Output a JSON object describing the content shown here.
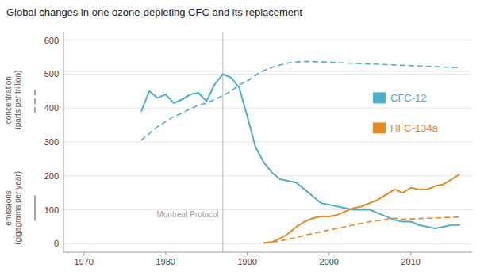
{
  "chart_data": {
    "type": "line",
    "title": "Global changes in one ozone-depleting CFC and its replacement",
    "ylabel": [
      {
        "lines": [
          "concentration",
          "(parts per trillion)"
        ],
        "line_style": "dashed"
      },
      {
        "lines": [
          "emissions",
          "(gigagrams per year)"
        ],
        "line_style": "solid"
      }
    ],
    "series": [
      {
        "name": "CFC-12",
        "color": "#4aaed0",
        "line_style": "solid",
        "x": [
          1977,
          1978,
          1979,
          1980,
          1981,
          1982,
          1983,
          1984,
          1985,
          1986,
          1987,
          1988,
          1989,
          1990,
          1991,
          1992,
          1993,
          1994,
          1995,
          1996,
          1997,
          1998,
          1999,
          2000,
          2001,
          2002,
          2003,
          2004,
          2005,
          2006,
          2007,
          2008,
          2009,
          2010,
          2011,
          2012,
          2013,
          2014,
          2015,
          2016
        ],
        "values": [
          390,
          450,
          430,
          440,
          415,
          425,
          440,
          445,
          420,
          470,
          500,
          490,
          460,
          375,
          285,
          240,
          210,
          190,
          185,
          180,
          160,
          140,
          120,
          115,
          110,
          105,
          100,
          100,
          100,
          90,
          80,
          70,
          65,
          65,
          55,
          50,
          45,
          50,
          55,
          55
        ]
      },
      {
        "name": "HFC-134a",
        "color": "#e8891a",
        "line_style": "solid",
        "x": [
          1992,
          1993,
          1994,
          1995,
          1996,
          1997,
          1998,
          1999,
          2000,
          2001,
          2002,
          2003,
          2004,
          2005,
          2006,
          2007,
          2008,
          2009,
          2010,
          2011,
          2012,
          2013,
          2014,
          2015,
          2016
        ],
        "values": [
          2,
          5,
          15,
          30,
          50,
          65,
          75,
          80,
          80,
          85,
          95,
          105,
          110,
          120,
          130,
          145,
          160,
          150,
          165,
          160,
          160,
          170,
          175,
          190,
          205
        ]
      },
      {
        "name": "CFC-12",
        "color": "#4aaed0",
        "line_style": "dashed",
        "x": [
          1977,
          1978,
          1979,
          1980,
          1981,
          1982,
          1983,
          1984,
          1985,
          1986,
          1987,
          1988,
          1989,
          1990,
          1991,
          1992,
          1993,
          1994,
          1995,
          1996,
          1997,
          1998,
          1999,
          2000,
          2001,
          2002,
          2003,
          2004,
          2005,
          2006,
          2007,
          2008,
          2009,
          2010,
          2011,
          2012,
          2013,
          2014,
          2015,
          2016
        ],
        "values": [
          305,
          325,
          345,
          360,
          375,
          385,
          398,
          408,
          415,
          425,
          437,
          450,
          468,
          480,
          497,
          510,
          520,
          527,
          533,
          536,
          537,
          537,
          536,
          535,
          534,
          533,
          532,
          531,
          530,
          529,
          528,
          527,
          526,
          525,
          524,
          523,
          522,
          521,
          520,
          519
        ]
      },
      {
        "name": "HFC-134a",
        "color": "#e8891a",
        "line_style": "dashed",
        "x": [
          1992,
          1993,
          1994,
          1995,
          1996,
          1997,
          1998,
          1999,
          2000,
          2001,
          2002,
          2003,
          2004,
          2005,
          2006,
          2007,
          2008,
          2009,
          2010,
          2011,
          2012,
          2013,
          2014,
          2015,
          2016
        ],
        "values": [
          3,
          5,
          8,
          13,
          18,
          25,
          30,
          35,
          40,
          45,
          50,
          55,
          60,
          65,
          68,
          72,
          75,
          72,
          73,
          74,
          75,
          76,
          77,
          78,
          79
        ]
      }
    ],
    "annotations": [
      {
        "x": 1987,
        "text": "Montreal Protocol"
      }
    ],
    "xlim": [
      1967.5,
      2017.5
    ],
    "xticks": [
      1970,
      1980,
      1990,
      2000,
      2010
    ],
    "ylim": [
      -25,
      625
    ],
    "yticks": [
      0,
      100,
      200,
      300,
      400,
      500,
      600
    ],
    "grid": true,
    "legend": "right"
  }
}
